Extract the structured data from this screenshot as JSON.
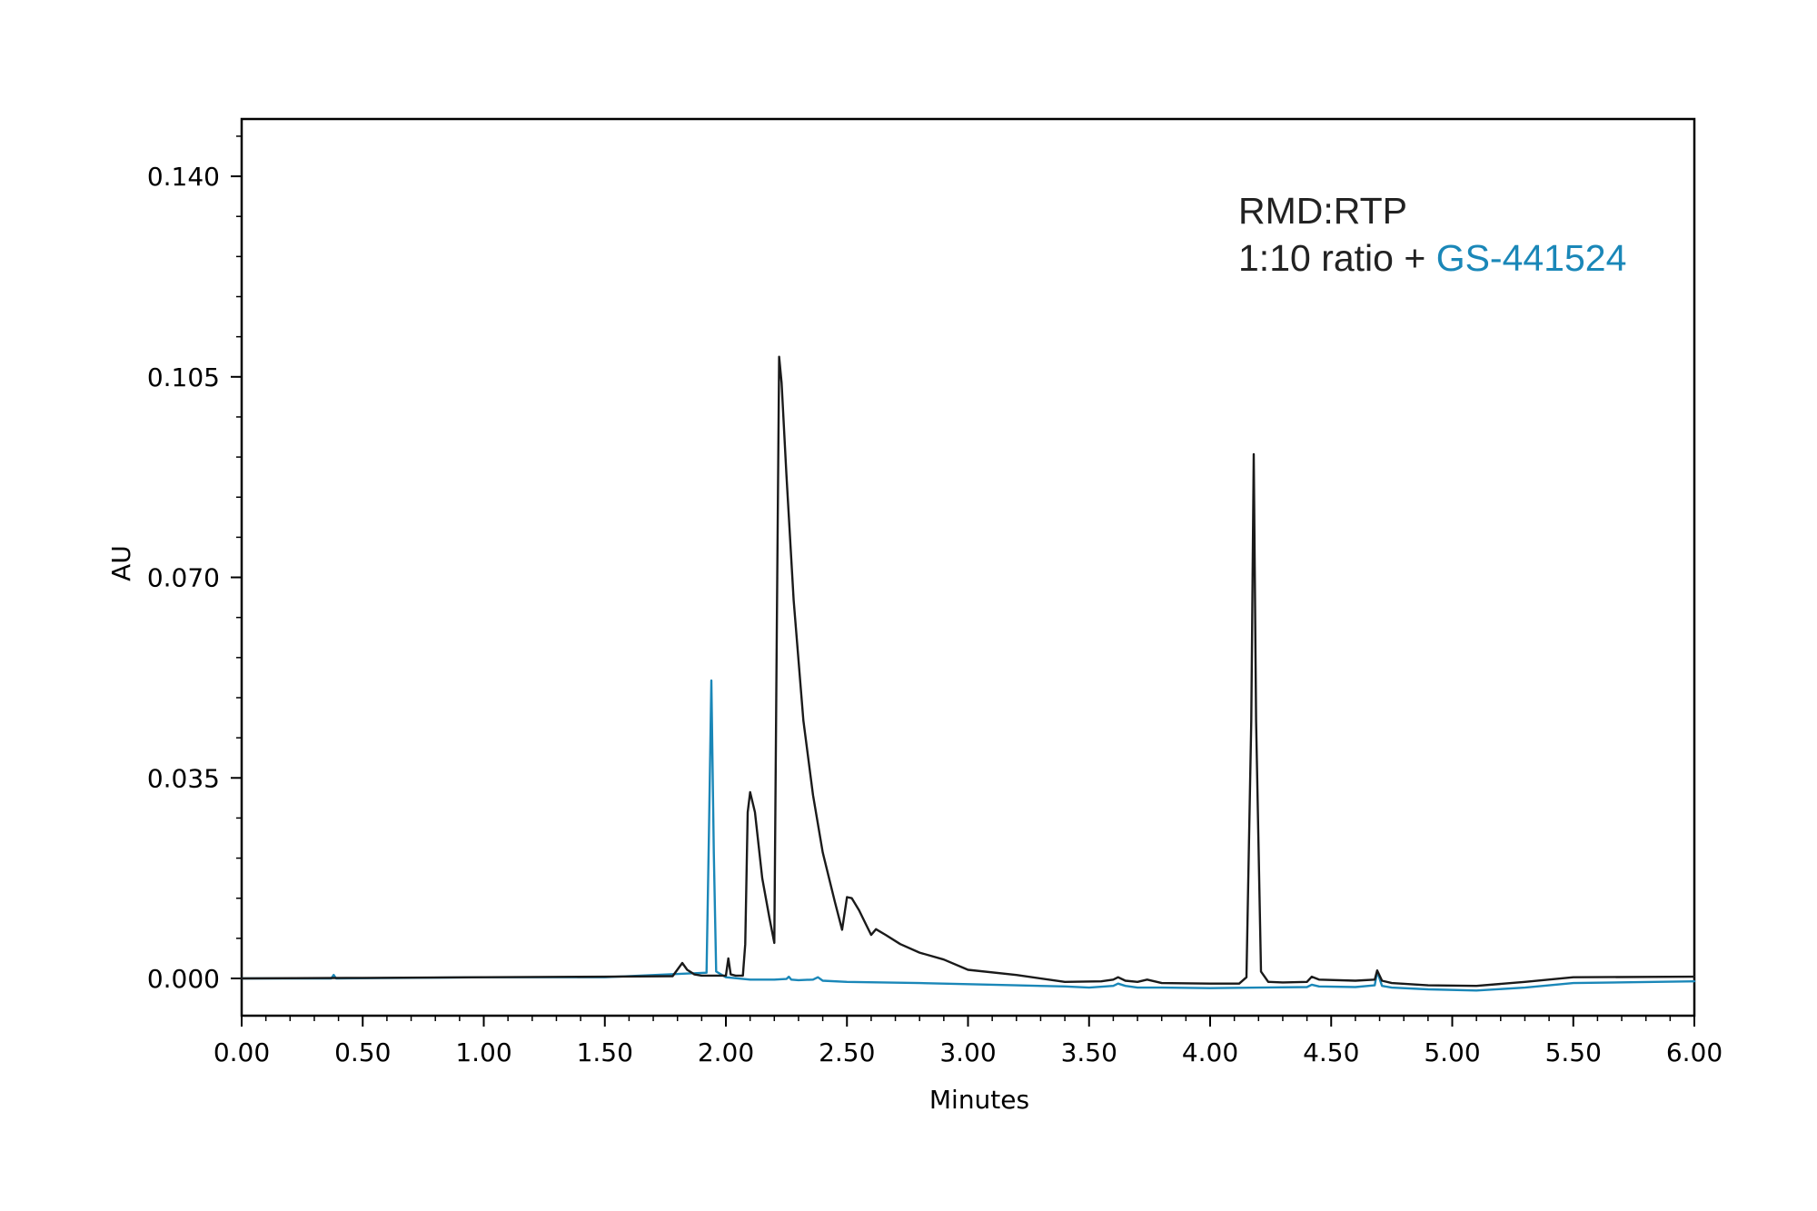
{
  "chart_data": {
    "type": "line",
    "xlabel": "Minutes",
    "ylabel": "AU",
    "xlim": [
      0,
      6.0
    ],
    "ylim": [
      -0.0065,
      0.15
    ],
    "x_ticks": [
      0,
      0.5,
      1.0,
      1.5,
      2.0,
      2.5,
      3.0,
      3.5,
      4.0,
      4.5,
      5.0,
      5.5,
      6.0
    ],
    "x_tick_labels": [
      "0.00",
      "0.50",
      "1.00",
      "1.50",
      "2.00",
      "2.50",
      "3.00",
      "3.50",
      "4.00",
      "4.50",
      "5.00",
      "5.50",
      "6.00"
    ],
    "y_ticks": [
      0,
      0.035,
      0.07,
      0.105,
      0.14
    ],
    "y_tick_labels": [
      "0.000",
      "0.035",
      "0.070",
      "0.105",
      "0.140"
    ],
    "grid": false,
    "annotation": {
      "line1": "RMD:RTP",
      "line2_prefix": "1:10 ratio + ",
      "line2_highlight": "GS-441524"
    },
    "colors": {
      "black_trace": "#1a1a1a",
      "blue_trace": "#1a87b8",
      "highlight_text": "#1a87b8"
    },
    "series": [
      {
        "color": "#1a1a1a",
        "x": [
          0,
          0.5,
          1.0,
          1.5,
          1.78,
          1.82,
          1.84,
          1.87,
          1.9,
          1.95,
          2.0,
          2.01,
          2.02,
          2.04,
          2.07,
          2.08,
          2.09,
          2.1,
          2.12,
          2.15,
          2.18,
          2.2,
          2.21,
          2.22,
          2.23,
          2.25,
          2.28,
          2.32,
          2.36,
          2.4,
          2.45,
          2.48,
          2.5,
          2.52,
          2.55,
          2.58,
          2.6,
          2.62,
          2.66,
          2.72,
          2.8,
          2.9,
          3.0,
          3.2,
          3.4,
          3.55,
          3.6,
          3.62,
          3.65,
          3.7,
          3.74,
          3.8,
          4.0,
          4.12,
          4.15,
          4.17,
          4.18,
          4.19,
          4.21,
          4.24,
          4.3,
          4.4,
          4.42,
          4.45,
          4.6,
          4.68,
          4.69,
          4.71,
          4.75,
          4.9,
          5.1,
          5.3,
          5.5,
          6.0
        ],
        "y": [
          0.0,
          0.0001,
          0.0002,
          0.0003,
          0.0004,
          0.0027,
          0.0015,
          0.0007,
          0.0005,
          0.0005,
          0.0005,
          0.0035,
          0.0007,
          0.0005,
          0.0005,
          0.006,
          0.029,
          0.0325,
          0.029,
          0.0175,
          0.0105,
          0.0062,
          0.06,
          0.1085,
          0.104,
          0.088,
          0.066,
          0.045,
          0.032,
          0.022,
          0.0134,
          0.0085,
          0.0142,
          0.014,
          0.0119,
          0.0093,
          0.0076,
          0.0086,
          0.0076,
          0.006,
          0.0045,
          0.0033,
          0.0015,
          0.0006,
          -0.0006,
          -0.0005,
          -0.0002,
          0.0002,
          -0.0004,
          -0.0006,
          -0.0002,
          -0.0008,
          -0.0009,
          -0.0009,
          0.0002,
          0.045,
          0.0915,
          0.045,
          0.0012,
          -0.0006,
          -0.0007,
          -0.0006,
          0.0003,
          -0.0002,
          -0.0004,
          -0.0002,
          0.0014,
          -0.0004,
          -0.0008,
          -0.0012,
          -0.0013,
          -0.0006,
          0.0002,
          0.0003
        ]
      },
      {
        "color": "#1a87b8",
        "x": [
          0,
          0.37,
          0.38,
          0.39,
          1.0,
          1.5,
          1.92,
          1.93,
          1.94,
          1.95,
          1.96,
          2.0,
          2.1,
          2.2,
          2.25,
          2.26,
          2.27,
          2.3,
          2.36,
          2.38,
          2.4,
          2.5,
          2.8,
          3.0,
          3.2,
          3.4,
          3.5,
          3.6,
          3.62,
          3.65,
          3.7,
          3.8,
          4.0,
          4.2,
          4.4,
          4.42,
          4.45,
          4.6,
          4.68,
          4.69,
          4.71,
          4.75,
          4.9,
          5.1,
          5.3,
          5.5,
          6.0
        ],
        "y": [
          0.0,
          0.0,
          0.0006,
          0.0,
          0.0002,
          0.0002,
          0.001,
          0.025,
          0.052,
          0.022,
          0.0012,
          0.0002,
          -0.0002,
          -0.0002,
          -0.0001,
          0.0003,
          -0.0002,
          -0.0003,
          -0.0002,
          0.0002,
          -0.0004,
          -0.0006,
          -0.0008,
          -0.001,
          -0.0012,
          -0.0014,
          -0.0016,
          -0.0013,
          -0.0009,
          -0.0013,
          -0.0016,
          -0.0016,
          -0.0017,
          -0.0016,
          -0.0015,
          -0.0011,
          -0.0014,
          -0.0015,
          -0.0012,
          0.0012,
          -0.0013,
          -0.0016,
          -0.0019,
          -0.0021,
          -0.0016,
          -0.0008,
          -0.0005
        ]
      }
    ]
  }
}
